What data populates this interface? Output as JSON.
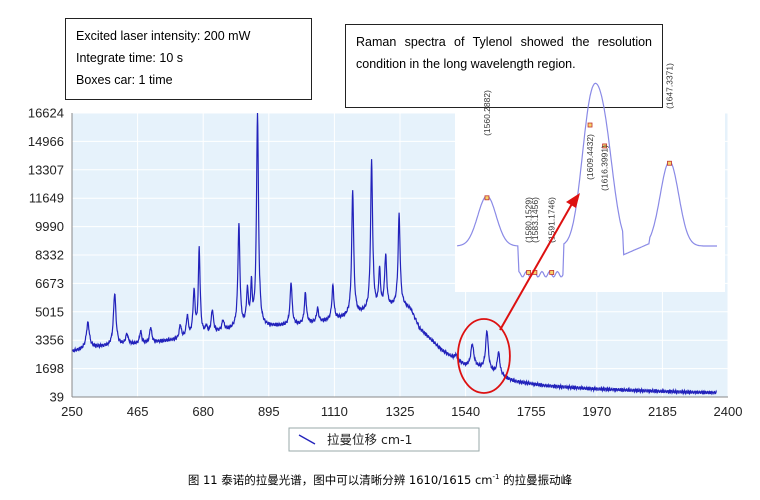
{
  "info_box": {
    "lines": [
      "Excited laser intensity: 200 mW",
      "Integrate time: 10 s",
      "Boxes car: 1 time"
    ]
  },
  "note_box": {
    "text": "Raman spectra of Tylenol showed the resolution condition in the long wavelength region."
  },
  "caption": {
    "prefix": "图 11 泰诺的拉曼光谱，图中可以清晰分辨 1610/1615 cm",
    "superscript": "-1",
    "suffix": " 的拉曼振动峰"
  },
  "colors": {
    "spectrum": "#2222bb",
    "inset_line": "#8a8ae6",
    "plot_bg": "#e6f2fb",
    "inset_bg": "#ffffff",
    "highlight": "#dd1111",
    "grid": "#ffffff"
  },
  "chart_data": {
    "type": "line",
    "xlim": [
      250,
      2400
    ],
    "ylim": [
      39,
      16624
    ],
    "x_ticks": [
      "250",
      "465",
      "680",
      "895",
      "1110",
      "1325",
      "1540",
      "1755",
      "1970",
      "2185",
      "2400"
    ],
    "y_ticks": [
      "39",
      "1698",
      "3356",
      "5015",
      "6673",
      "8332",
      "9990",
      "11649",
      "13307",
      "14966",
      "16624"
    ],
    "legend": "拉曼位移 cm-1",
    "grid": true,
    "series": [
      {
        "name": "拉曼位移 cm-1",
        "baseline": [
          [
            250,
            2700
          ],
          [
            330,
            2950
          ],
          [
            480,
            3150
          ],
          [
            600,
            3400
          ],
          [
            700,
            3750
          ],
          [
            800,
            4050
          ],
          [
            900,
            4150
          ],
          [
            1000,
            4250
          ],
          [
            1100,
            4500
          ],
          [
            1200,
            4900
          ],
          [
            1330,
            5400
          ],
          [
            1360,
            5150
          ],
          [
            1390,
            4000
          ],
          [
            1420,
            3500
          ],
          [
            1460,
            2800
          ],
          [
            1500,
            2300
          ],
          [
            1540,
            1850
          ],
          [
            1600,
            1700
          ],
          [
            1650,
            1300
          ],
          [
            1700,
            950
          ],
          [
            1800,
            700
          ],
          [
            1950,
            520
          ],
          [
            2100,
            420
          ],
          [
            2250,
            330
          ],
          [
            2360,
            290
          ]
        ],
        "peaks": [
          {
            "x": 302,
            "h": 1500,
            "w": 6
          },
          {
            "x": 390,
            "h": 3050,
            "w": 5
          },
          {
            "x": 430,
            "h": 600,
            "w": 5
          },
          {
            "x": 475,
            "h": 700,
            "w": 4
          },
          {
            "x": 508,
            "h": 900,
            "w": 4
          },
          {
            "x": 605,
            "h": 800,
            "w": 4
          },
          {
            "x": 628,
            "h": 1200,
            "w": 4
          },
          {
            "x": 650,
            "h": 2500,
            "w": 4
          },
          {
            "x": 667,
            "h": 5000,
            "w": 3.5
          },
          {
            "x": 690,
            "h": 400,
            "w": 3
          },
          {
            "x": 710,
            "h": 1300,
            "w": 4
          },
          {
            "x": 745,
            "h": 600,
            "w": 4
          },
          {
            "x": 797,
            "h": 6000,
            "w": 4
          },
          {
            "x": 825,
            "h": 2000,
            "w": 4
          },
          {
            "x": 838,
            "h": 2300,
            "w": 3
          },
          {
            "x": 858,
            "h": 12400,
            "w": 4
          },
          {
            "x": 968,
            "h": 2500,
            "w": 4
          },
          {
            "x": 1015,
            "h": 1800,
            "w": 4
          },
          {
            "x": 1055,
            "h": 800,
            "w": 4
          },
          {
            "x": 1105,
            "h": 2000,
            "w": 4
          },
          {
            "x": 1170,
            "h": 7300,
            "w": 4
          },
          {
            "x": 1232,
            "h": 8750,
            "w": 4
          },
          {
            "x": 1258,
            "h": 2200,
            "w": 3.5
          },
          {
            "x": 1278,
            "h": 3000,
            "w": 4
          },
          {
            "x": 1322,
            "h": 5300,
            "w": 4
          },
          {
            "x": 1508,
            "h": 300,
            "w": 5
          },
          {
            "x": 1562,
            "h": 1300,
            "w": 6
          },
          {
            "x": 1610,
            "h": 2250,
            "w": 5
          },
          {
            "x": 1648,
            "h": 1300,
            "w": 5
          }
        ]
      }
    ],
    "inset": {
      "type": "line",
      "peak_labels": [
        "(1560.2882)",
        "(1580.1529)",
        "(1583.1456)",
        "(1591.1746)",
        "(1609.4432)",
        "(1616.3991)",
        "(1647.3371)"
      ],
      "xlim": [
        1546,
        1670
      ],
      "peaks": [
        [
          1560.29,
          1.0
        ],
        [
          1580.15,
          0.12
        ],
        [
          1583.15,
          0.12
        ],
        [
          1591.17,
          0.12
        ],
        [
          1609.44,
          1.78
        ],
        [
          1616.4,
          1.55
        ],
        [
          1647.34,
          1.38
        ]
      ]
    }
  }
}
